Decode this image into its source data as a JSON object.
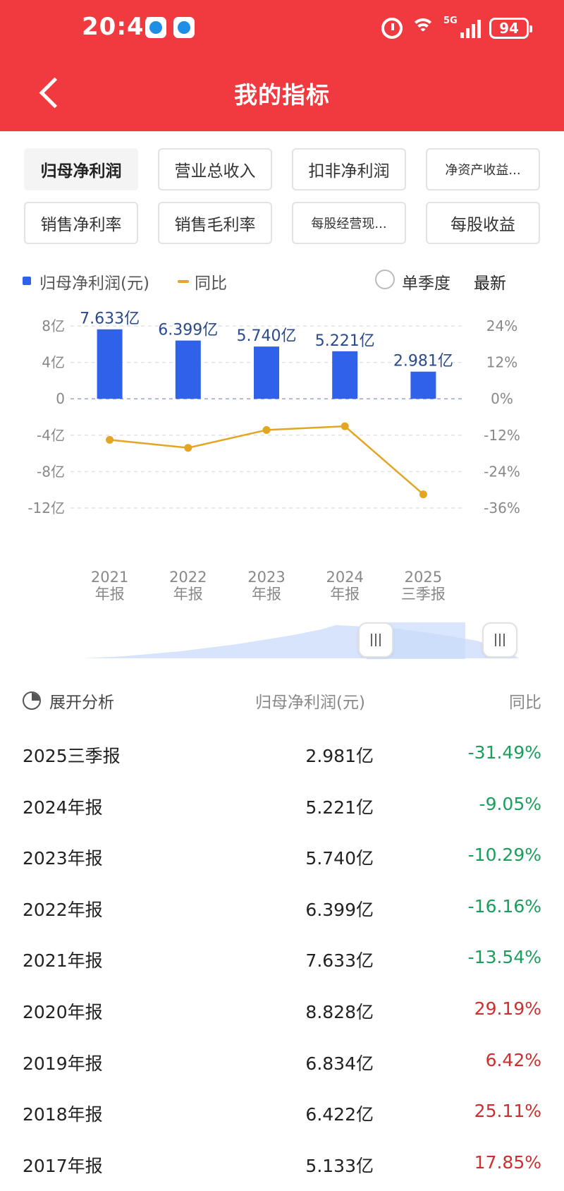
{
  "status_bar": {
    "time": "20:45",
    "network": "5G",
    "battery": "94",
    "icons": [
      "app-icon-a",
      "app-icon-b",
      "alarm-icon",
      "wifi-icon",
      "signal-icon",
      "battery-icon"
    ]
  },
  "header": {
    "title": "我的指标",
    "back_icon": "chevron-left-icon"
  },
  "metrics": [
    {
      "label": "归母净利润",
      "active": true
    },
    {
      "label": "营业总收入",
      "active": false
    },
    {
      "label": "扣非净利润",
      "active": false
    },
    {
      "label": "净资产收益...",
      "active": false
    },
    {
      "label": "销售净利率",
      "active": false
    },
    {
      "label": "销售毛利率",
      "active": false
    },
    {
      "label": "每股经营现...",
      "active": false
    },
    {
      "label": "每股收益",
      "active": false
    }
  ],
  "legend": {
    "bar_label": "归母净利润(元)",
    "line_label": "同比",
    "quarter_label": "单季度",
    "latest_label": "最新"
  },
  "chart_data": {
    "type": "bar+line",
    "categories": [
      "2021\n年报",
      "2022\n年报",
      "2023\n年报",
      "2024\n年报",
      "2025\n三季报"
    ],
    "category_lines": [
      [
        "2021",
        "年报"
      ],
      [
        "2022",
        "年报"
      ],
      [
        "2023",
        "年报"
      ],
      [
        "2024",
        "年报"
      ],
      [
        "2025",
        "三季报"
      ]
    ],
    "series": [
      {
        "name": "归母净利润(元)",
        "type": "bar",
        "axis": "left",
        "unit": "亿",
        "values": [
          7.633,
          6.399,
          5.74,
          5.221,
          2.981
        ],
        "data_labels": [
          "7.633亿",
          "6.399亿",
          "5.740亿",
          "5.221亿",
          "2.981亿"
        ]
      },
      {
        "name": "同比",
        "type": "line",
        "axis": "right",
        "unit": "%",
        "values": [
          -13.54,
          -16.16,
          -10.29,
          -9.05,
          -31.49
        ]
      }
    ],
    "left_axis": {
      "ticks": [
        "8亿",
        "4亿",
        "0",
        "-4亿",
        "-8亿",
        "-12亿"
      ],
      "tick_values": [
        8,
        4,
        0,
        -4,
        -8,
        -12
      ],
      "ylim": [
        -12,
        8
      ]
    },
    "right_axis": {
      "ticks": [
        "24%",
        "12%",
        "0%",
        "-12%",
        "-24%",
        "-36%"
      ],
      "tick_values": [
        24,
        12,
        0,
        -12,
        -24,
        -36
      ],
      "ylim": [
        -36,
        24
      ]
    },
    "grid": true,
    "colors": {
      "bar": "#2f62e8",
      "line": "#e4a523"
    }
  },
  "table": {
    "header": {
      "analysis": "展开分析",
      "value": "归母净利润(元)",
      "yoy": "同比"
    },
    "rows": [
      {
        "period": "2025三季报",
        "value": "2.981亿",
        "yoy": "-31.49%",
        "sign": "neg"
      },
      {
        "period": "2024年报",
        "value": "5.221亿",
        "yoy": "-9.05%",
        "sign": "neg"
      },
      {
        "period": "2023年报",
        "value": "5.740亿",
        "yoy": "-10.29%",
        "sign": "neg"
      },
      {
        "period": "2022年报",
        "value": "6.399亿",
        "yoy": "-16.16%",
        "sign": "neg"
      },
      {
        "period": "2021年报",
        "value": "7.633亿",
        "yoy": "-13.54%",
        "sign": "neg"
      },
      {
        "period": "2020年报",
        "value": "8.828亿",
        "yoy": "29.19%",
        "sign": "pos"
      },
      {
        "period": "2019年报",
        "value": "6.834亿",
        "yoy": "6.42%",
        "sign": "pos"
      },
      {
        "period": "2018年报",
        "value": "6.422亿",
        "yoy": "25.11%",
        "sign": "pos"
      },
      {
        "period": "2017年报",
        "value": "5.133亿",
        "yoy": "17.85%",
        "sign": "pos"
      }
    ]
  },
  "colors": {
    "header": "#f03a3f",
    "negative": "#1a9e5c",
    "positive": "#cf2e2e"
  }
}
